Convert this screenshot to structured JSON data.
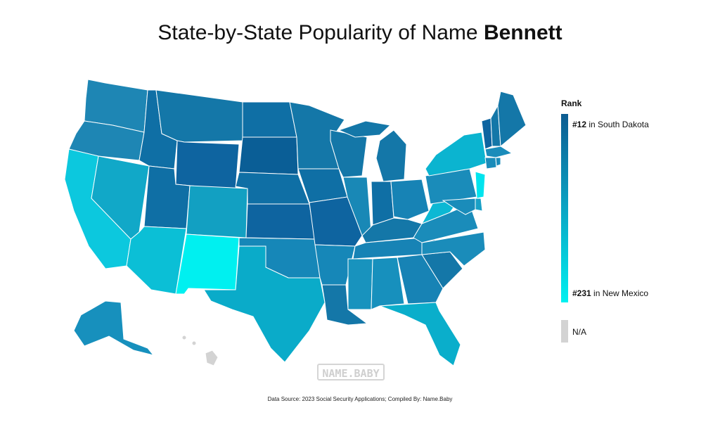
{
  "title": {
    "prefix": "State-by-State Popularity of Name ",
    "name": "Bennett"
  },
  "legend": {
    "title": "Rank",
    "top_rank": "#12",
    "top_state": " in South Dakota",
    "bottom_rank": "#231",
    "bottom_state": " in New Mexico",
    "na_label": "N/A",
    "colors": {
      "high": "#0d5c91",
      "mid": "#0aa4c4",
      "low": "#00f0f0",
      "na": "#d3d3d3"
    }
  },
  "watermark": "NAME.BABY",
  "source": "Data Source: 2023 Social Security Applications; Compiled By: Name.Baby",
  "map_data": {
    "WA": "#1e86b4",
    "OR": "#1e86b4",
    "CA": "#0cc8de",
    "NV": "#11a8c8",
    "ID": "#0f6fa5",
    "MT": "#1477a8",
    "WY": "#0e64a0",
    "UT": "#0f6fa5",
    "AZ": "#0bbfd6",
    "CO": "#12a0c2",
    "NM": "#00f0f0",
    "ND": "#0f6fa5",
    "SD": "#0a5e96",
    "NE": "#0f6fa5",
    "KS": "#0e64a0",
    "OK": "#1687b8",
    "TX": "#0aabc9",
    "MN": "#1477a8",
    "IA": "#0f6fa5",
    "MO": "#0e64a0",
    "AR": "#1687b8",
    "LA": "#1477a8",
    "WI": "#1477a8",
    "IL": "#1988b6",
    "MI": "#1477a8",
    "IN": "#0f6fa5",
    "OH": "#1783b5",
    "KY": "#1477a8",
    "TN": "#1783b5",
    "MS": "#1893be",
    "AL": "#1790bd",
    "GA": "#1783b5",
    "FL": "#0aaecb",
    "SC": "#1477a8",
    "NC": "#1a8cba",
    "VA": "#1a8cba",
    "WV": "#0cb8d4",
    "PA": "#1a8cba",
    "NY": "#0bb4d0",
    "VT": "#0e64a0",
    "NH": "#1477a8",
    "ME": "#1477a8",
    "MA": "#1a8cba",
    "CT": "#1a8cba",
    "RI": "#1a8cba",
    "NJ": "#00e4ee",
    "DE": "#1aa0c6",
    "MD": "#1a8cba",
    "AK": "#1790bd",
    "HI": "#d3d3d3"
  }
}
